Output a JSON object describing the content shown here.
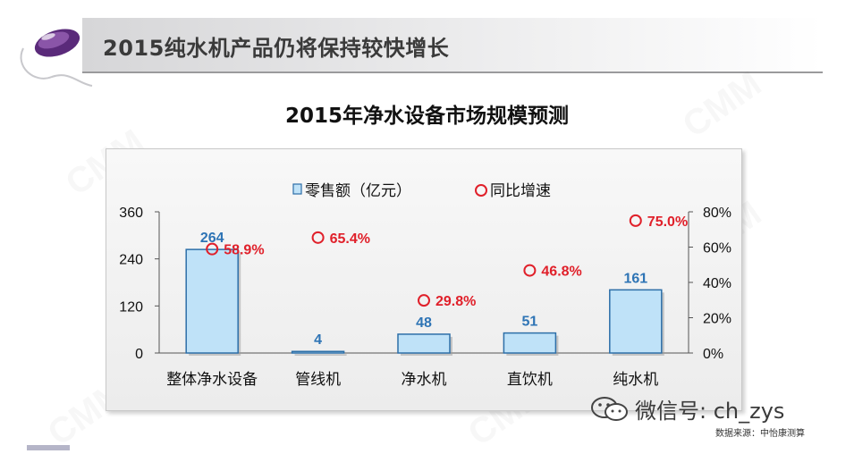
{
  "slide": {
    "title": "2015纯水机产品仍将保持较快增长"
  },
  "chart_data": {
    "type": "bar",
    "title": "2015年净水设备市场规模预测",
    "categories": [
      "整体净水设备",
      "管线机",
      "净水机",
      "直饮机",
      "纯水机"
    ],
    "series": [
      {
        "name": "零售额（亿元）",
        "type": "bar",
        "axis": "left",
        "values": [
          264,
          4,
          48,
          51,
          161
        ],
        "labels": [
          "264",
          "4",
          "48",
          "51",
          "161"
        ],
        "color": "#bfe2f8"
      },
      {
        "name": "同比增速",
        "type": "scatter",
        "axis": "right",
        "values": [
          58.9,
          65.4,
          29.8,
          46.8,
          75.0
        ],
        "labels": [
          "58.9%",
          "65.4%",
          "29.8%",
          "46.8%",
          "75.0%"
        ],
        "color": "#e0202a"
      }
    ],
    "y_left": {
      "ylim": [
        0,
        360
      ],
      "ticks": [
        "0",
        "120",
        "240",
        "360"
      ]
    },
    "y_right": {
      "ylim": [
        0,
        80
      ],
      "ticks": [
        "0%",
        "20%",
        "40%",
        "60%",
        "80%"
      ]
    },
    "legend_position": "top",
    "grid": false,
    "bar_label_color": "#2e74b5",
    "point_label_color": "#e0202a"
  },
  "footer": {
    "wechat_text": "微信号: ch_zys",
    "source_text": "数据来源：中怡康测算"
  },
  "watermark_text": "CMM",
  "icons": {
    "logo": "computer-mouse-icon",
    "social": "wechat-icon"
  }
}
